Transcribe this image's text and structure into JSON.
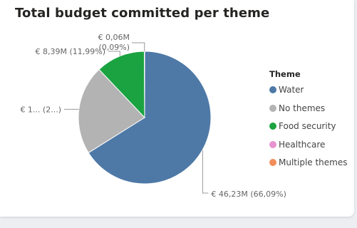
{
  "title": "Total budget committed per theme",
  "legend": {
    "title": "Theme",
    "items": [
      {
        "label": "Water",
        "color": "#4e79a7"
      },
      {
        "label": "No themes",
        "color": "#b3b3b3"
      },
      {
        "label": "Food security",
        "color": "#1ba341"
      },
      {
        "label": "Healthcare",
        "color": "#e793cf"
      },
      {
        "label": "Multiple themes",
        "color": "#f28e5b"
      }
    ]
  },
  "chart_data": {
    "type": "pie",
    "categories": [
      "Water",
      "No themes",
      "Food security",
      "Healthcare",
      "Multiple themes"
    ],
    "values": [
      66.09,
      21.83,
      11.99,
      0.09,
      0.0
    ],
    "value_unit": "%",
    "data_labels": [
      "€ 46,23M (66,09%)",
      "€ 1... (2...)",
      "€ 8,39M (11,99%)",
      "€ 0,06M (0,09%)",
      ""
    ],
    "colors": [
      "#4e79a7",
      "#b3b3b3",
      "#1ba341",
      "#e793cf",
      "#f28e5b"
    ],
    "legend_placement": "right"
  }
}
